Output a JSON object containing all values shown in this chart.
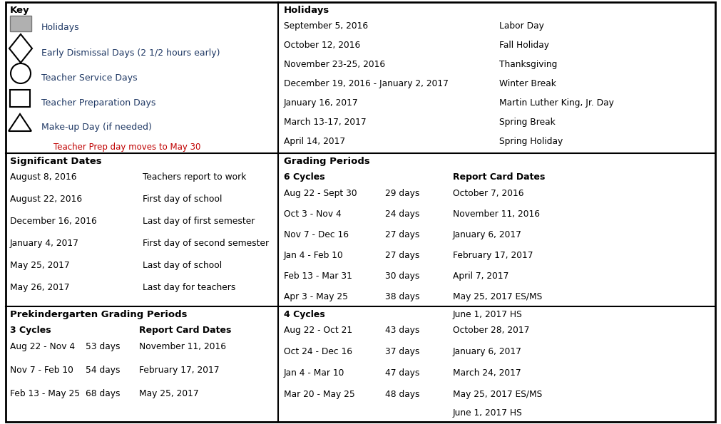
{
  "fig_width": 10.11,
  "fig_height": 5.95,
  "bg_color": "#ffffff",
  "border_color": "#000000",
  "text_color": "#000000",
  "blue_text": "#1F3864",
  "red_text": "#C00000",
  "key_note": "Teacher Prep day moves to May 30",
  "holidays": [
    [
      "September 5, 2016",
      "Labor Day"
    ],
    [
      "October 12, 2016",
      "Fall Holiday"
    ],
    [
      "November 23-25, 2016",
      "Thanksgiving"
    ],
    [
      "December 19, 2016 - January 2, 2017",
      "Winter Break"
    ],
    [
      "January 16, 2017",
      "Martin Luther King, Jr. Day"
    ],
    [
      "March 13-17, 2017",
      "Spring Break"
    ],
    [
      "April 14, 2017",
      "Spring Holiday"
    ]
  ],
  "significant_dates": [
    [
      "August 8, 2016",
      "Teachers report to work"
    ],
    [
      "August 22, 2016",
      "First day of school"
    ],
    [
      "December 16, 2016",
      "Last day of first semester"
    ],
    [
      "January 4, 2017",
      "First day of second semester"
    ],
    [
      "May 25, 2017",
      "Last day of school"
    ],
    [
      "May 26, 2017",
      "Last day for teachers"
    ]
  ],
  "grading_6cycles": [
    [
      "Aug 22 - Sept 30",
      "29 days",
      "October 7, 2016"
    ],
    [
      "Oct 3 - Nov 4",
      "24 days",
      "November 11, 2016"
    ],
    [
      "Nov 7 - Dec 16",
      "27 days",
      "January 6, 2017"
    ],
    [
      "Jan 4 - Feb 10",
      "27 days",
      "February 17, 2017"
    ],
    [
      "Feb 13 - Mar 31",
      "30 days",
      "April 7, 2017"
    ],
    [
      "Apr 3 - May 25",
      "38 days",
      "May 25, 2017 ES/MS"
    ]
  ],
  "grading_6cycles_extra": "June 1, 2017 HS",
  "grading_4cycles": [
    [
      "Aug 22 - Oct 21",
      "43 days",
      "October 28, 2017"
    ],
    [
      "Oct 24 - Dec 16",
      "37 days",
      "January 6, 2017"
    ],
    [
      "Jan 4 - Mar 10",
      "47 days",
      "March 24, 2017"
    ],
    [
      "Mar 20 - May 25",
      "48 days",
      "May 25, 2017 ES/MS"
    ]
  ],
  "grading_4cycles_extra": "June 1, 2017 HS",
  "preK_3cycles": [
    [
      "Aug 22 - Nov 4",
      "53 days",
      "November 11, 2016"
    ],
    [
      "Nov 7 - Feb 10",
      "54 days",
      "February 17, 2017"
    ],
    [
      "Feb 13 - May 25",
      "68 days",
      "May 25, 2017"
    ]
  ]
}
